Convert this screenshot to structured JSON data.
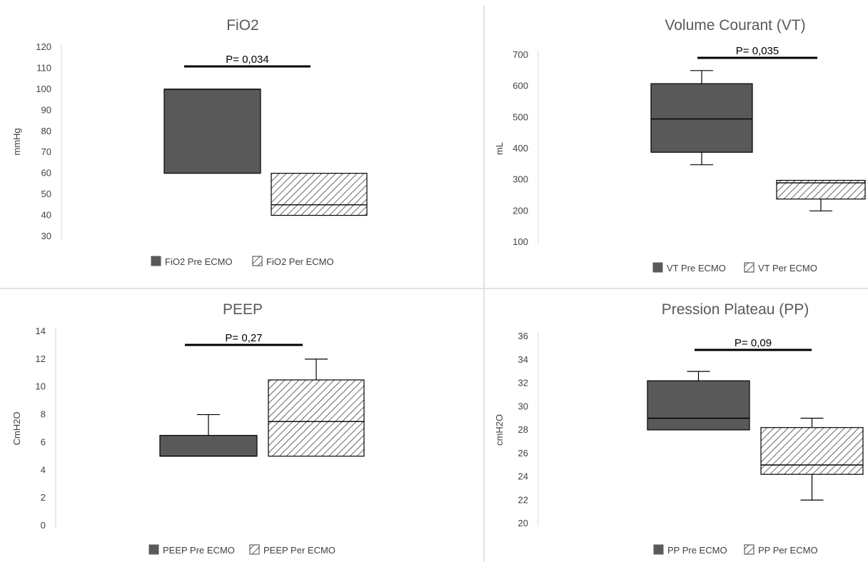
{
  "colors": {
    "pre": "#595959",
    "hatch": "#404040",
    "text": "#404040",
    "title": "#595959"
  },
  "chart_data": [
    {
      "type": "boxplot",
      "title": "FiO2",
      "ylabel": "mmHg",
      "ylim": [
        30,
        120
      ],
      "yticks": [
        "120",
        "110",
        "100",
        "90",
        "80",
        "70",
        "60",
        "50",
        "40",
        "30"
      ],
      "annotation": "P= 0,034",
      "series": [
        {
          "name": "FiO2 Pre ECMO",
          "pattern": "solid",
          "q1": 60,
          "median": 100,
          "q3": 100,
          "whisker_low": 60,
          "whisker_high": 100
        },
        {
          "name": "FiO2 Per ECMO",
          "pattern": "hatch",
          "q1": 40,
          "median": 45,
          "q3": 60,
          "whisker_low": 40,
          "whisker_high": 60
        }
      ],
      "grid": false,
      "legend": "bottom"
    },
    {
      "type": "boxplot",
      "title": "Volume Courant (VT)",
      "ylabel": "mL",
      "ylim": [
        100,
        700
      ],
      "yticks": [
        "700",
        "600",
        "500",
        "400",
        "300",
        "200",
        "100"
      ],
      "annotation": "P= 0,035",
      "series": [
        {
          "name": "VT Pre ECMO",
          "pattern": "solid",
          "q1": 388,
          "median": 495,
          "q3": 608,
          "whisker_low": 348,
          "whisker_high": 650
        },
        {
          "name": "VT Per ECMO",
          "pattern": "hatch",
          "q1": 238,
          "median": 290,
          "q3": 298,
          "whisker_low": 200,
          "whisker_high": 298
        }
      ],
      "grid": false,
      "legend": "bottom"
    },
    {
      "type": "boxplot",
      "title": "PEEP",
      "ylabel": "CmH2O",
      "ylim": [
        0,
        14
      ],
      "yticks": [
        "14",
        "12",
        "10",
        "8",
        "6",
        "4",
        "2",
        "0"
      ],
      "annotation": "P= 0,27",
      "series": [
        {
          "name": "PEEP Pre ECMO",
          "pattern": "solid",
          "q1": 5,
          "median": 5,
          "q3": 6.5,
          "whisker_low": 5,
          "whisker_high": 8
        },
        {
          "name": "PEEP Per ECMO",
          "pattern": "hatch",
          "q1": 5,
          "median": 7.5,
          "q3": 10.5,
          "whisker_low": 5,
          "whisker_high": 12
        }
      ],
      "grid": false,
      "legend": "bottom"
    },
    {
      "type": "boxplot",
      "title": "Pression Plateau (PP)",
      "ylabel": "cmH2O",
      "ylim": [
        20,
        36
      ],
      "yticks": [
        "36",
        "34",
        "32",
        "30",
        "28",
        "26",
        "24",
        "22",
        "20"
      ],
      "annotation": "P= 0,09",
      "series": [
        {
          "name": "PP Pre ECMO",
          "pattern": "solid",
          "q1": 28,
          "median": 29,
          "q3": 32.2,
          "whisker_low": 28,
          "whisker_high": 33
        },
        {
          "name": "PP Per ECMO",
          "pattern": "hatch",
          "q1": 24.2,
          "median": 25,
          "q3": 28.2,
          "whisker_low": 22,
          "whisker_high": 29
        }
      ],
      "grid": false,
      "legend": "bottom"
    }
  ]
}
